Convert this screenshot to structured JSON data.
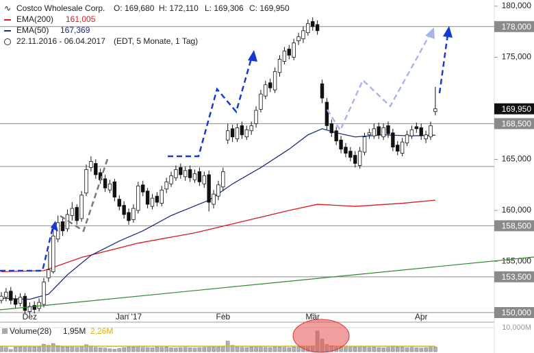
{
  "chart_data": {
    "type": "candlestick",
    "header": {
      "name": "Costco Wholesale Corp.",
      "ohlc": [
        "O: 169,680",
        "H: 172,110",
        "L: 169,306",
        "C: 169,950"
      ],
      "range": "22.11.2016 - 06.04.2017",
      "info": "(EDT, 5 Monate, 1 Tag)"
    },
    "categories": [
      null,
      null,
      null,
      null,
      null,
      null,
      "Dez",
      null,
      null,
      null,
      null,
      null,
      null,
      null,
      null,
      null,
      null,
      null,
      null,
      null,
      null,
      null,
      null,
      null,
      null,
      null,
      null,
      "Jan '17",
      null,
      null,
      null,
      null,
      null,
      null,
      null,
      null,
      null,
      null,
      null,
      null,
      null,
      null,
      null,
      null,
      null,
      null,
      null,
      "Feb",
      null,
      null,
      null,
      null,
      null,
      null,
      null,
      null,
      null,
      null,
      null,
      null,
      null,
      null,
      null,
      null,
      null,
      null,
      "Mär",
      null,
      null,
      null,
      null,
      null,
      null,
      null,
      null,
      null,
      null,
      null,
      null,
      null,
      null,
      null,
      null,
      null,
      null,
      null,
      null,
      null,
      null,
      "Apr",
      null,
      null,
      null
    ],
    "candles": {
      "open": [
        151.2,
        151.5,
        152.1,
        151.3,
        150.9,
        151.6,
        150.1,
        150.7,
        150.4,
        150.8,
        153.4,
        154.0,
        157.2,
        158.9,
        158.2,
        159.5,
        160.3,
        159.2,
        161.7,
        164.2,
        164.6,
        163.7,
        163.1,
        162.0,
        162.8,
        161.1,
        160.5,
        159.8,
        159.1,
        160.0,
        162.5,
        161.9,
        160.4,
        161.4,
        160.7,
        162.1,
        162.6,
        163.2,
        164.2,
        163.3,
        164.0,
        163.0,
        163.8,
        162.6,
        163.5,
        160.6,
        161.4,
        162.3,
        166.9,
        168.0,
        167.0,
        168.3,
        167.2,
        167.8,
        168.5,
        169.9,
        171.2,
        172.5,
        171.8,
        173.5,
        174.6,
        175.8,
        175.0,
        176.6,
        176.8,
        177.4,
        178.5,
        178.2,
        172.4,
        170.6,
        168.5,
        167.8,
        166.9,
        166.2,
        165.8,
        165.4,
        164.4,
        165.7,
        167.4,
        167.3,
        168.2,
        167.2,
        168.3,
        167.6,
        166.4,
        165.6,
        166.6,
        167.3,
        168.2,
        168.1,
        167.0,
        167.2,
        169.68
      ],
      "high": [
        152.0,
        152.4,
        152.5,
        151.7,
        151.9,
        151.9,
        151.0,
        151.1,
        151.4,
        153.4,
        156.0,
        158.2,
        159.5,
        159.4,
        160.1,
        160.8,
        160.6,
        161.9,
        164.5,
        165.3,
        165.0,
        164.1,
        163.5,
        163.0,
        163.1,
        161.5,
        160.9,
        160.2,
        160.6,
        162.8,
        162.9,
        162.2,
        161.6,
        161.8,
        162.4,
        163.2,
        163.8,
        164.4,
        164.6,
        164.3,
        164.4,
        164.0,
        164.2,
        163.8,
        163.9,
        162.0,
        162.9,
        164.2,
        168.5,
        168.4,
        168.5,
        168.7,
        168.3,
        168.7,
        170.2,
        171.8,
        172.7,
        172.9,
        174.0,
        175.2,
        176.0,
        176.2,
        176.8,
        177.4,
        178.0,
        178.7,
        178.9,
        178.6,
        172.8,
        171.0,
        168.9,
        168.2,
        167.3,
        166.6,
        166.2,
        165.8,
        166.2,
        167.6,
        168.0,
        168.5,
        168.6,
        168.5,
        168.7,
        168.0,
        166.8,
        167.1,
        167.8,
        168.3,
        168.6,
        168.5,
        167.8,
        168.7,
        172.11
      ],
      "low": [
        150.9,
        151.1,
        150.8,
        150.4,
        150.6,
        149.9,
        149.8,
        149.9,
        150.1,
        150.5,
        153.0,
        153.8,
        156.9,
        157.5,
        157.9,
        159.0,
        158.6,
        158.9,
        161.4,
        163.8,
        163.1,
        162.6,
        161.8,
        161.7,
        160.9,
        160.0,
        159.2,
        158.6,
        158.8,
        159.7,
        161.4,
        160.2,
        160.1,
        160.4,
        160.4,
        161.7,
        162.3,
        162.9,
        163.1,
        162.9,
        162.8,
        162.7,
        162.4,
        162.2,
        159.9,
        160.2,
        161.0,
        161.9,
        166.5,
        166.7,
        166.7,
        167.0,
        166.9,
        167.4,
        168.1,
        169.6,
        170.9,
        171.6,
        171.5,
        173.1,
        174.3,
        174.8,
        174.7,
        176.2,
        176.4,
        177.1,
        177.6,
        177.2,
        170.5,
        167.9,
        167.2,
        166.4,
        165.6,
        165.2,
        164.8,
        164.2,
        164.1,
        165.4,
        167.0,
        167.0,
        167.0,
        166.9,
        167.1,
        165.8,
        165.4,
        165.3,
        166.3,
        167.0,
        167.6,
        166.9,
        166.6,
        166.9,
        169.306
      ],
      "close": [
        151.6,
        152.0,
        151.2,
        150.8,
        151.5,
        150.2,
        150.6,
        150.3,
        151.0,
        153.0,
        154.2,
        157.5,
        158.8,
        158.0,
        159.6,
        160.2,
        159.0,
        161.5,
        164.0,
        164.8,
        163.5,
        163.0,
        162.2,
        162.6,
        161.3,
        160.4,
        159.6,
        159.0,
        160.2,
        162.4,
        161.8,
        160.6,
        161.2,
        160.8,
        162.0,
        162.8,
        163.4,
        164.0,
        163.5,
        163.9,
        163.2,
        163.6,
        162.8,
        163.4,
        160.8,
        161.6,
        162.5,
        163.8,
        167.8,
        167.2,
        168.1,
        167.4,
        167.9,
        168.3,
        169.8,
        171.4,
        172.3,
        172.0,
        173.6,
        174.8,
        175.6,
        175.2,
        176.4,
        177.0,
        177.6,
        178.3,
        178.0,
        177.6,
        171.0,
        168.3,
        167.6,
        166.8,
        166.0,
        165.6,
        165.2,
        164.6,
        165.8,
        167.2,
        167.6,
        168.0,
        167.4,
        168.1,
        167.5,
        166.2,
        165.8,
        166.7,
        167.4,
        167.9,
        168.0,
        167.3,
        167.4,
        168.3,
        169.95
      ],
      "last_label": "169,950"
    },
    "series": [
      {
        "name": "EMA(200)",
        "color": "#e01818",
        "x": [
          0,
          9,
          17,
          29,
          41,
          51,
          61,
          67,
          75,
          85,
          92
        ],
        "values": [
          154.0,
          154.1,
          155.4,
          156.8,
          157.8,
          158.9,
          160.0,
          160.6,
          160.4,
          160.7,
          161.005
        ],
        "last_label": "161,005"
      },
      {
        "name": "EMA(50)",
        "color": "#1a2a8a",
        "x": [
          0,
          6,
          10,
          14,
          19,
          25,
          30,
          36,
          44,
          49,
          55,
          61,
          65,
          68,
          71,
          75,
          81,
          87,
          92
        ],
        "values": [
          151.4,
          151.3,
          151.8,
          153.7,
          155.6,
          157.0,
          158.0,
          159.5,
          161.0,
          162.6,
          164.2,
          166.0,
          167.4,
          168.0,
          167.6,
          167.2,
          167.4,
          167.3,
          167.369
        ],
        "last_label": "167,369"
      }
    ],
    "ylim": [
      150,
      180
    ],
    "yticks": [
      {
        "value": 155,
        "label": "155,000"
      },
      {
        "value": 160,
        "label": "160,000"
      },
      {
        "value": 165,
        "label": "165,000"
      },
      {
        "value": 175,
        "label": "175,000"
      },
      {
        "value": 180,
        "label": "180,000"
      }
    ],
    "levels": [
      {
        "value": 178,
        "label": "178,000"
      },
      {
        "value": 168.5,
        "label": "168,500"
      },
      164.3,
      {
        "value": 158.5,
        "label": "158,500"
      },
      {
        "value": 153.5,
        "label": "153,500"
      },
      {
        "value": 150,
        "label": "150,000"
      }
    ],
    "volume": {
      "label": "Volume(28)",
      "color": "#b0b0b0",
      "values": [
        2.1,
        1.8,
        0.9,
        1.9,
        2.0,
        2.3,
        2.2,
        1.9,
        2.0,
        3.1,
        2.6,
        3.4,
        2.5,
        2.0,
        1.9,
        2.2,
        1.8,
        2.1,
        2.9,
        2.4,
        1.8,
        1.6,
        1.5,
        1.2,
        1.0,
        1.3,
        1.7,
        2.0,
        1.9,
        2.2,
        1.8,
        1.7,
        1.6,
        2.0,
        1.8,
        1.9,
        1.6,
        1.5,
        1.7,
        1.8,
        1.6,
        1.5,
        1.7,
        1.8,
        2.3,
        2.0,
        1.9,
        2.1,
        4.4,
        2.6,
        2.0,
        1.8,
        1.7,
        1.9,
        2.1,
        2.3,
        1.8,
        1.7,
        2.0,
        1.9,
        1.8,
        1.7,
        1.9,
        2.0,
        2.1,
        2.2,
        2.4,
        8.6,
        5.2,
        3.0,
        2.5,
        2.2,
        2.0,
        2.1,
        2.3,
        1.9,
        2.2,
        2.0,
        1.8,
        1.9,
        1.7,
        1.6,
        1.8,
        2.4,
        2.0,
        1.9,
        1.7,
        1.8,
        1.6,
        1.5,
        1.7,
        2.3,
        1.95
      ],
      "last_label": "1,95M",
      "average": 2.26,
      "average_label": "2,26M",
      "average_color": "#e8b400",
      "ylim": [
        0,
        10
      ],
      "yticks": [
        {
          "value": 10,
          "label": "10,000M"
        }
      ]
    }
  }
}
